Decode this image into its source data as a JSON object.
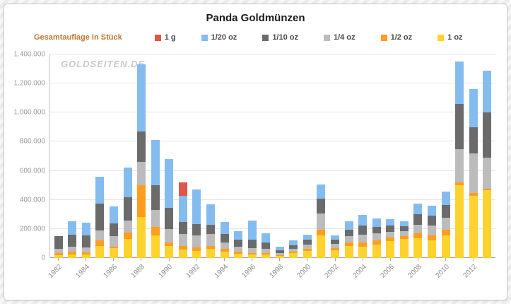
{
  "title": "Panda Goldmünzen",
  "unit_label": "Gesamtauflage in Stück",
  "watermark": "GOLDSEITEN.DE",
  "legend": {
    "items": [
      {
        "label": "1 g",
        "color": "#E05648"
      },
      {
        "label": "1/20 oz",
        "color": "#85BCF0"
      },
      {
        "label": "1/10 oz",
        "color": "#6B6B6B"
      },
      {
        "label": "1/4 oz",
        "color": "#BCBCBC"
      },
      {
        "label": "1/2 oz",
        "color": "#FF9D1E"
      },
      {
        "label": "1 oz",
        "color": "#FFD22E"
      }
    ]
  },
  "chart_data": {
    "type": "bar",
    "stacked": true,
    "title": "Panda Goldmünzen",
    "ylabel": "Gesamtauflage in Stück",
    "xlabel": "",
    "grid": true,
    "legend_position": "top",
    "ylim": [
      0,
      1400000
    ],
    "ytick_step": 200000,
    "xlabel_every": 2,
    "categories": [
      "1982",
      "1983",
      "1984",
      "1985",
      "1986",
      "1987",
      "1988",
      "1989",
      "1990",
      "1991",
      "1992",
      "1993",
      "1994",
      "1995",
      "1996",
      "1997",
      "1998",
      "1999",
      "2000",
      "2001",
      "2002",
      "2003",
      "2004",
      "2005",
      "2006",
      "2007",
      "2008",
      "2009",
      "2010",
      "2011",
      "2012",
      "2013"
    ],
    "series": [
      {
        "name": "1 oz",
        "color": "#FFD22E",
        "values": [
          19000,
          26000,
          25000,
          81000,
          67000,
          129000,
          283000,
          158000,
          81000,
          60000,
          48000,
          62000,
          43000,
          29000,
          24000,
          24000,
          14000,
          34000,
          48000,
          158000,
          53000,
          82000,
          77000,
          91000,
          115000,
          129000,
          134000,
          120000,
          158000,
          500000,
          430000,
          465000
        ]
      },
      {
        "name": "1/2 oz",
        "color": "#FF9D1E",
        "values": [
          14000,
          17000,
          16000,
          39000,
          10000,
          48000,
          220000,
          58000,
          24000,
          25000,
          24000,
          20000,
          19000,
          14000,
          12000,
          10000,
          7000,
          10000,
          14000,
          38000,
          14000,
          24000,
          29000,
          29000,
          24000,
          24000,
          34000,
          38000,
          38000,
          20000,
          15000,
          10000
        ]
      },
      {
        "name": "1/4 oz",
        "color": "#BCBCBC",
        "values": [
          29000,
          33000,
          31000,
          72000,
          76000,
          82000,
          160000,
          115000,
          96000,
          80000,
          86000,
          81000,
          43000,
          34000,
          31000,
          29000,
          14000,
          19000,
          29000,
          111000,
          29000,
          43000,
          57000,
          48000,
          43000,
          34000,
          62000,
          67000,
          82000,
          230000,
          275000,
          215000
        ]
      },
      {
        "name": "1/10 oz",
        "color": "#6B6B6B",
        "values": [
          91000,
          86000,
          84000,
          182000,
          87000,
          158000,
          205000,
          168000,
          144000,
          85000,
          77000,
          67000,
          58000,
          52000,
          62000,
          43000,
          19000,
          24000,
          34000,
          100000,
          29000,
          48000,
          62000,
          48000,
          43000,
          34000,
          72000,
          67000,
          86000,
          310000,
          180000,
          310000
        ]
      },
      {
        "name": "1/20 oz",
        "color": "#85BCF0",
        "values": [
          0,
          92000,
          89000,
          187000,
          115000,
          206000,
          462000,
          311000,
          336000,
          180000,
          235000,
          139000,
          86000,
          58000,
          130000,
          62000,
          23000,
          33000,
          38000,
          101000,
          33000,
          57000,
          72000,
          57000,
          43000,
          33000,
          72000,
          68000,
          91000,
          290000,
          260000,
          290000
        ]
      },
      {
        "name": "1 g",
        "color": "#E05648",
        "values": [
          0,
          0,
          0,
          0,
          0,
          0,
          0,
          0,
          0,
          90000,
          0,
          0,
          0,
          0,
          0,
          0,
          0,
          0,
          0,
          0,
          0,
          0,
          0,
          0,
          0,
          0,
          0,
          0,
          0,
          0,
          0,
          0
        ]
      }
    ]
  }
}
